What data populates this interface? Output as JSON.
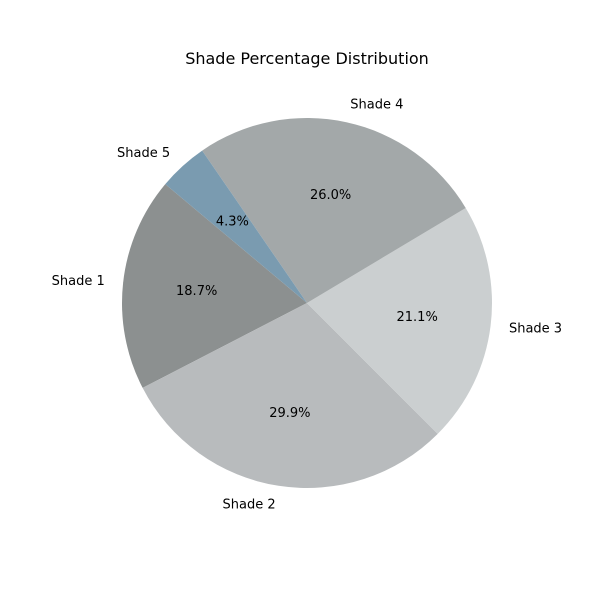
{
  "chart_data": {
    "type": "pie",
    "title": "Shade Percentage Distribution",
    "categories": [
      "Shade 1",
      "Shade 2",
      "Shade 3",
      "Shade 4",
      "Shade 5"
    ],
    "values": [
      18.7,
      29.9,
      21.1,
      26.0,
      4.3
    ],
    "value_labels": [
      "18.7%",
      "29.9%",
      "21.1%",
      "26.0%",
      "4.3%"
    ],
    "colors": [
      "#8c9090",
      "#b8bbbd",
      "#cbcfd0",
      "#a3a8a9",
      "#7a9bb0"
    ],
    "start_angle_deg": 140,
    "direction": "counterclockwise",
    "legend": "none"
  }
}
